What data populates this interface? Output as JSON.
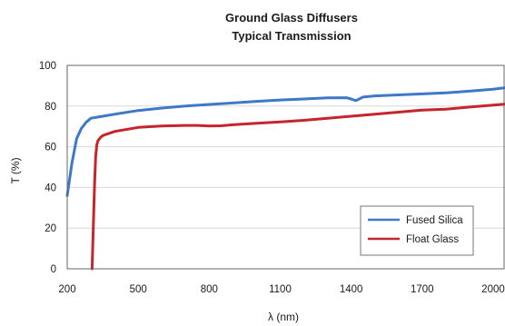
{
  "chart_data": {
    "type": "line",
    "title": "Ground Glass Diffusers",
    "subtitle": "Typical Transmission",
    "xlabel": "λ (nm)",
    "ylabel": "T (%)",
    "xlim": [
      200,
      2050
    ],
    "ylim": [
      0,
      100
    ],
    "xticks": [
      200,
      500,
      800,
      1100,
      1400,
      1700,
      2000
    ],
    "yticks": [
      0,
      20,
      40,
      60,
      80,
      100
    ],
    "grid": "horizontal",
    "legend_position": "bottom-right",
    "series": [
      {
        "name": "Fused Silica",
        "color": "#3d79c6",
        "x": [
          200,
          220,
          240,
          260,
          280,
          300,
          350,
          400,
          500,
          600,
          700,
          800,
          900,
          1000,
          1100,
          1200,
          1300,
          1380,
          1400,
          1420,
          1450,
          1500,
          1600,
          1700,
          1800,
          1900,
          2000,
          2050
        ],
        "y": [
          36,
          52,
          64,
          69,
          72,
          74,
          75,
          76,
          77.8,
          79,
          80,
          80.8,
          81.5,
          82.3,
          83,
          83.5,
          84,
          84.1,
          83.5,
          82.7,
          84.4,
          85,
          85.5,
          86,
          86.5,
          87.3,
          88.3,
          89
        ]
      },
      {
        "name": "Float Glass",
        "color": "#c5252b",
        "x": [
          305,
          310,
          315,
          320,
          325,
          330,
          340,
          350,
          400,
          500,
          600,
          700,
          750,
          800,
          850,
          900,
          1000,
          1100,
          1200,
          1300,
          1400,
          1500,
          1600,
          1700,
          1800,
          1900,
          2000,
          2050
        ],
        "y": [
          0,
          20,
          40,
          55,
          61,
          63,
          64.5,
          65.5,
          67.5,
          69.5,
          70.2,
          70.5,
          70.5,
          70.2,
          70.3,
          70.8,
          71.5,
          72.2,
          73,
          74,
          75,
          76,
          77,
          78,
          78.5,
          79.5,
          80.5,
          81
        ]
      }
    ]
  }
}
